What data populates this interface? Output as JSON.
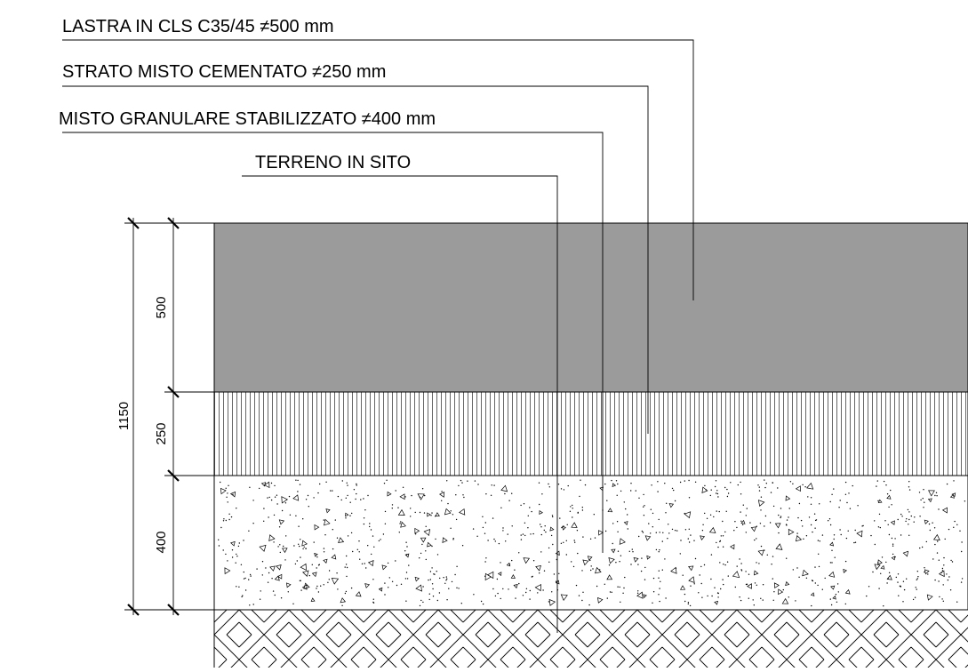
{
  "layers": [
    {
      "label": "LASTRA IN CLS C35/45  ≠500 mm",
      "thickness_mm": 500,
      "pattern": "solid-gray",
      "fill": "#9b9b9b"
    },
    {
      "label": "STRATO MISTO CEMENTATO  ≠250 mm",
      "thickness_mm": 250,
      "pattern": "vertical-hatch"
    },
    {
      "label": "MISTO GRANULARE STABILIZZATO ≠400 mm",
      "thickness_mm": 400,
      "pattern": "concrete-aggregate"
    },
    {
      "label": "TERRENO IN SITO",
      "thickness_mm": null,
      "pattern": "herringbone-earth"
    }
  ],
  "dimensions": {
    "total": "1150",
    "parts": [
      "500",
      "250",
      "400"
    ]
  },
  "colors": {
    "line": "#000000",
    "concrete_slab": "#9b9b9b",
    "background": "#ffffff"
  }
}
